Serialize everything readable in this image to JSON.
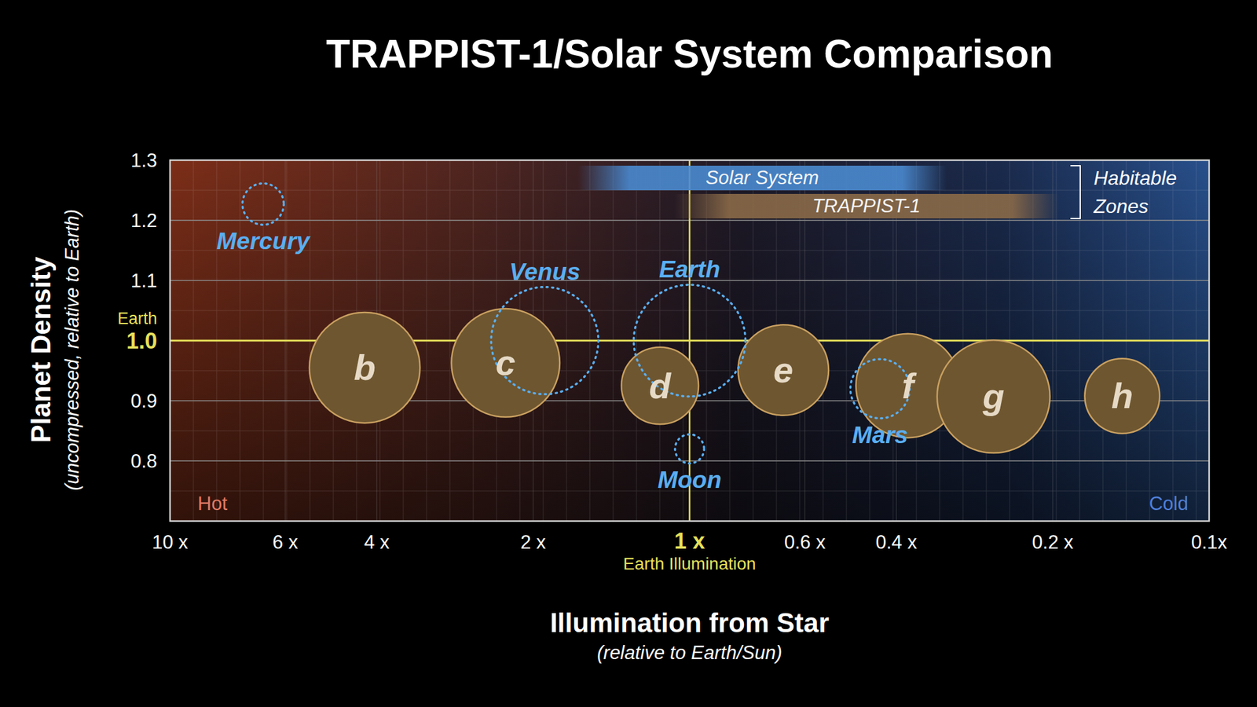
{
  "chart_data": {
    "type": "bubble",
    "title": "TRAPPIST-1/Solar System Comparison",
    "x_label": "Illumination from Star",
    "x_sublabel": "(relative to Earth/Sun)",
    "y_label": "Planet Density",
    "y_sublabel": "(uncompressed, relative to Earth)",
    "log": "x",
    "grid": true,
    "xlim": [
      10,
      0.1
    ],
    "ylim": [
      0.7,
      1.3
    ],
    "xticks": [
      {
        "value": 10,
        "label": "10 x"
      },
      {
        "value": 6,
        "label": "6 x"
      },
      {
        "value": 4,
        "label": "4 x"
      },
      {
        "value": 2,
        "label": "2 x"
      },
      {
        "value": 1,
        "label": "1 x"
      },
      {
        "value": 0.6,
        "label": "0.6 x"
      },
      {
        "value": 0.4,
        "label": "0.4 x"
      },
      {
        "value": 0.2,
        "label": "0.2 x"
      },
      {
        "value": 0.1,
        "label": "0.1x"
      }
    ],
    "yticks": [
      0.8,
      0.9,
      {
        "value": 1,
        "label": "1.0"
      },
      1.1,
      1.2,
      1.3
    ],
    "reference": {
      "x": 1,
      "y": 1,
      "color": "#e6e05a"
    },
    "series": [
      {
        "color": "#6e5630",
        "marker": "filled",
        "labels": [
          "b",
          "c",
          "d",
          "e",
          "f",
          "g",
          "h"
        ],
        "x": [
          4.22,
          2.26,
          1.14,
          0.66,
          0.38,
          0.26,
          0.147
        ],
        "values": [
          0.955,
          0.963,
          0.925,
          0.951,
          0.925,
          0.907,
          0.908
        ],
        "size": [
          0.99,
          0.97,
          0.69,
          0.81,
          0.93,
          1.01,
          0.67
        ]
      },
      {
        "color": "#5aaef0",
        "marker": "dotted",
        "labels": [
          "Mercury",
          "Venus",
          "Earth",
          "Moon",
          "Mars"
        ],
        "x": [
          6.62,
          1.9,
          1,
          1,
          0.43
        ],
        "values": [
          1.227,
          1,
          1,
          0.82,
          0.92
        ],
        "size": [
          0.37,
          0.96,
          1,
          0.26,
          0.53
        ]
      }
    ],
    "habitable_zones": {
      "label_lines": [
        "Habitable",
        "Zones"
      ],
      "bands": [
        {
          "name": "Solar System",
          "color": "#4a8ad0",
          "range": [
            1.64,
            0.32
          ]
        },
        {
          "name": "TRAPPIST-1",
          "color": "#8a6a48",
          "range": [
            1.07,
            0.195
          ]
        }
      ]
    },
    "annotations": {
      "hot": "Hot",
      "cold": "Cold",
      "earth_density": "Earth",
      "earth_illumination": "Earth Illumination"
    }
  }
}
